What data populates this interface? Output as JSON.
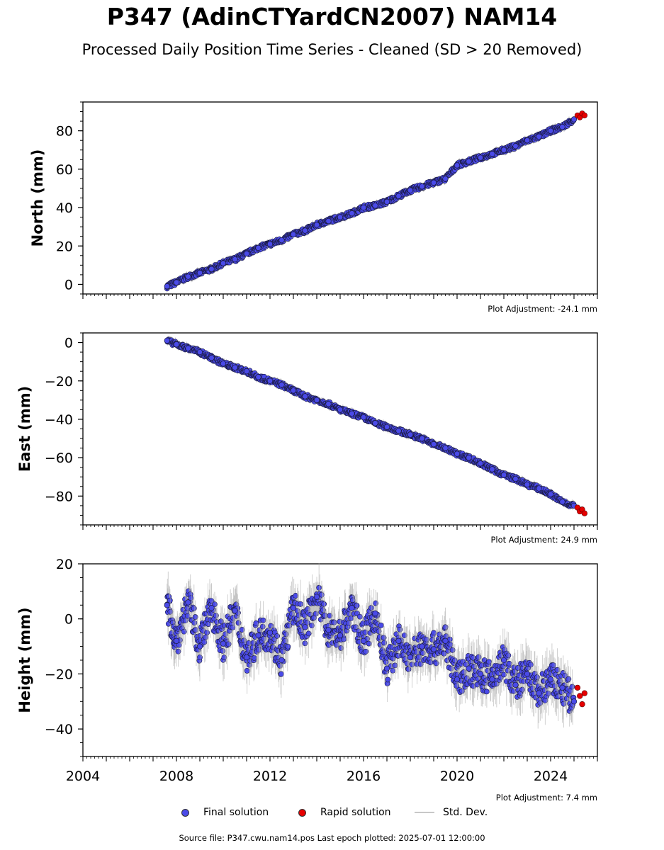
{
  "title": "P347 (AdinCTYardCN2007) NAM14",
  "subtitle": "Processed Daily Position Time Series - Cleaned (SD > 20 Removed)",
  "legend": {
    "final": "Final solution",
    "rapid": "Rapid solution",
    "std": "Std. Dev."
  },
  "source_text": "Source file: P347.cwu.nam14.pos  Last epoch plotted: 2025-07-01 12:00:00",
  "colors": {
    "final": "#4a4ae8",
    "rapid": "#e60000",
    "edge": "#1a1a40",
    "std": "#aaaaaa"
  },
  "chart_data": [
    {
      "type": "scatter",
      "ylabel": "North (mm)",
      "xlim": [
        2004,
        2026
      ],
      "ylim": [
        -5,
        95
      ],
      "yticks": [
        0,
        20,
        40,
        60,
        80
      ],
      "adjustment": "Plot Adjustment: -24.1 mm",
      "series": [
        {
          "name": "Final solution",
          "x": [
            2007.6,
            2008.0,
            2008.5,
            2009.0,
            2009.5,
            2010.0,
            2010.5,
            2011.0,
            2011.5,
            2012.0,
            2012.5,
            2013.0,
            2013.5,
            2014.0,
            2014.5,
            2015.0,
            2015.5,
            2016.0,
            2016.5,
            2017.0,
            2017.5,
            2018.0,
            2018.5,
            2019.0,
            2019.5,
            2020.0,
            2020.5,
            2021.0,
            2021.5,
            2022.0,
            2022.5,
            2023.0,
            2023.5,
            2024.0,
            2024.5,
            2025.0
          ],
          "y": [
            -1,
            1,
            4,
            6,
            8,
            11,
            13,
            16,
            19,
            21,
            23,
            26,
            28,
            31,
            33,
            35,
            37,
            40,
            41,
            43,
            46,
            49,
            51,
            53,
            55,
            62,
            64,
            66,
            68,
            70,
            72,
            75,
            77,
            80,
            82,
            86
          ]
        },
        {
          "name": "Rapid solution",
          "x": [
            2025.15,
            2025.25,
            2025.35,
            2025.45
          ],
          "y": [
            88,
            87,
            89,
            88
          ]
        }
      ]
    },
    {
      "type": "scatter",
      "ylabel": "East (mm)",
      "xlim": [
        2004,
        2026
      ],
      "ylim": [
        -95,
        5
      ],
      "yticks": [
        0,
        -20,
        -40,
        -60,
        -80
      ],
      "adjustment": "Plot Adjustment: 24.9 mm",
      "series": [
        {
          "name": "Final solution",
          "x": [
            2007.6,
            2008.0,
            2008.5,
            2009.0,
            2009.5,
            2010.0,
            2010.5,
            2011.0,
            2011.5,
            2012.0,
            2012.5,
            2013.0,
            2013.5,
            2014.0,
            2014.5,
            2015.0,
            2015.5,
            2016.0,
            2016.5,
            2017.0,
            2017.5,
            2018.0,
            2018.5,
            2019.0,
            2019.5,
            2020.0,
            2020.5,
            2021.0,
            2021.5,
            2022.0,
            2022.5,
            2023.0,
            2023.5,
            2024.0,
            2024.5,
            2025.0
          ],
          "y": [
            1,
            -1,
            -3,
            -5,
            -8,
            -11,
            -13,
            -15,
            -18,
            -20,
            -22,
            -25,
            -28,
            -30,
            -32,
            -35,
            -37,
            -39,
            -42,
            -44,
            -46,
            -48,
            -50,
            -53,
            -55,
            -58,
            -60,
            -63,
            -66,
            -69,
            -71,
            -74,
            -76,
            -79,
            -83,
            -85
          ]
        },
        {
          "name": "Rapid solution",
          "x": [
            2025.15,
            2025.25,
            2025.35,
            2025.45
          ],
          "y": [
            -86,
            -88,
            -87,
            -89
          ]
        }
      ]
    },
    {
      "type": "scatter",
      "ylabel": "Height (mm)",
      "xlim": [
        2004,
        2026
      ],
      "ylim": [
        -50,
        20
      ],
      "yticks": [
        20,
        0,
        -20,
        -40
      ],
      "xticks": [
        2004,
        2008,
        2012,
        2016,
        2020,
        2024
      ],
      "adjustment": "Plot Adjustment: 7.4 mm",
      "series": [
        {
          "name": "Final solution",
          "x": [
            2007.6,
            2008.0,
            2008.5,
            2009.0,
            2009.5,
            2010.0,
            2010.5,
            2011.0,
            2011.5,
            2012.0,
            2012.5,
            2013.0,
            2013.5,
            2014.0,
            2014.5,
            2015.0,
            2015.5,
            2016.0,
            2016.5,
            2017.0,
            2017.5,
            2018.0,
            2018.5,
            2019.0,
            2019.5,
            2020.0,
            2020.5,
            2021.0,
            2021.5,
            2022.0,
            2022.5,
            2023.0,
            2023.5,
            2024.0,
            2024.5,
            2025.0
          ],
          "y": [
            5,
            -8,
            6,
            -10,
            4,
            -9,
            3,
            -14,
            -6,
            -5,
            -15,
            4,
            -3,
            8,
            -4,
            -6,
            4,
            -8,
            2,
            -18,
            -8,
            -14,
            -10,
            -11,
            -8,
            -22,
            -18,
            -20,
            -22,
            -15,
            -24,
            -20,
            -27,
            -22,
            -25,
            -30
          ]
        },
        {
          "name": "Rapid solution",
          "x": [
            2025.15,
            2025.25,
            2025.35,
            2025.45
          ],
          "y": [
            -25,
            -28,
            -31,
            -27
          ]
        }
      ]
    }
  ]
}
